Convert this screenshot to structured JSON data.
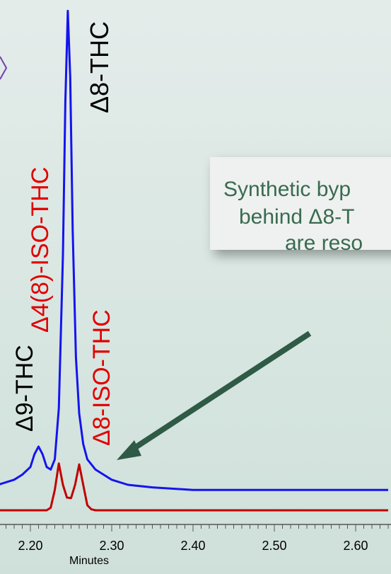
{
  "chart_data": {
    "type": "line",
    "xlabel": "Minutes",
    "ylabel": "",
    "xlim": [
      2.12,
      2.64
    ],
    "ylim": [
      -0.03,
      1.0
    ],
    "x_ticks": [
      "2.20",
      "2.30",
      "2.40",
      "2.50",
      "2.60"
    ],
    "grid": false,
    "series": [
      {
        "color": "#1414ee",
        "x": [
          2.12,
          2.16,
          2.18,
          2.19,
          2.2,
          2.205,
          2.21,
          2.215,
          2.22,
          2.225,
          2.23,
          2.235,
          2.24,
          2.243,
          2.246,
          2.249,
          2.252,
          2.256,
          2.26,
          2.265,
          2.27,
          2.28,
          2.29,
          2.3,
          2.32,
          2.35,
          2.4,
          2.5,
          2.6,
          2.64
        ],
        "y": [
          0.05,
          0.05,
          0.06,
          0.07,
          0.085,
          0.11,
          0.125,
          0.11,
          0.085,
          0.08,
          0.1,
          0.2,
          0.5,
          0.8,
          0.98,
          0.85,
          0.55,
          0.3,
          0.19,
          0.13,
          0.1,
          0.08,
          0.07,
          0.06,
          0.05,
          0.045,
          0.04,
          0.04,
          0.04,
          0.04
        ]
      },
      {
        "color": "#c00000",
        "x": [
          2.12,
          2.22,
          2.225,
          2.23,
          2.235,
          2.24,
          2.245,
          2.25,
          2.255,
          2.26,
          2.265,
          2.27,
          2.275,
          2.28,
          2.3,
          2.64
        ],
        "y": [
          0.0,
          0.0,
          0.005,
          0.04,
          0.092,
          0.05,
          0.025,
          0.024,
          0.05,
          0.09,
          0.05,
          0.01,
          0.002,
          0.0,
          0.0,
          0.0
        ]
      }
    ],
    "annotations": [
      {
        "text": "Δ8-THC",
        "color": "#000000"
      },
      {
        "text": "Δ4(8)-ISO-THC",
        "color": "#e00000"
      },
      {
        "text": "Δ8-ISO-THC",
        "color": "#e00000"
      },
      {
        "text": "Δ9-THC",
        "color": "#000000"
      }
    ],
    "callout": {
      "lines": [
        "Synthetic byp",
        "behind Δ8-T",
        "are reso"
      ],
      "color": "#3a6a50"
    }
  }
}
